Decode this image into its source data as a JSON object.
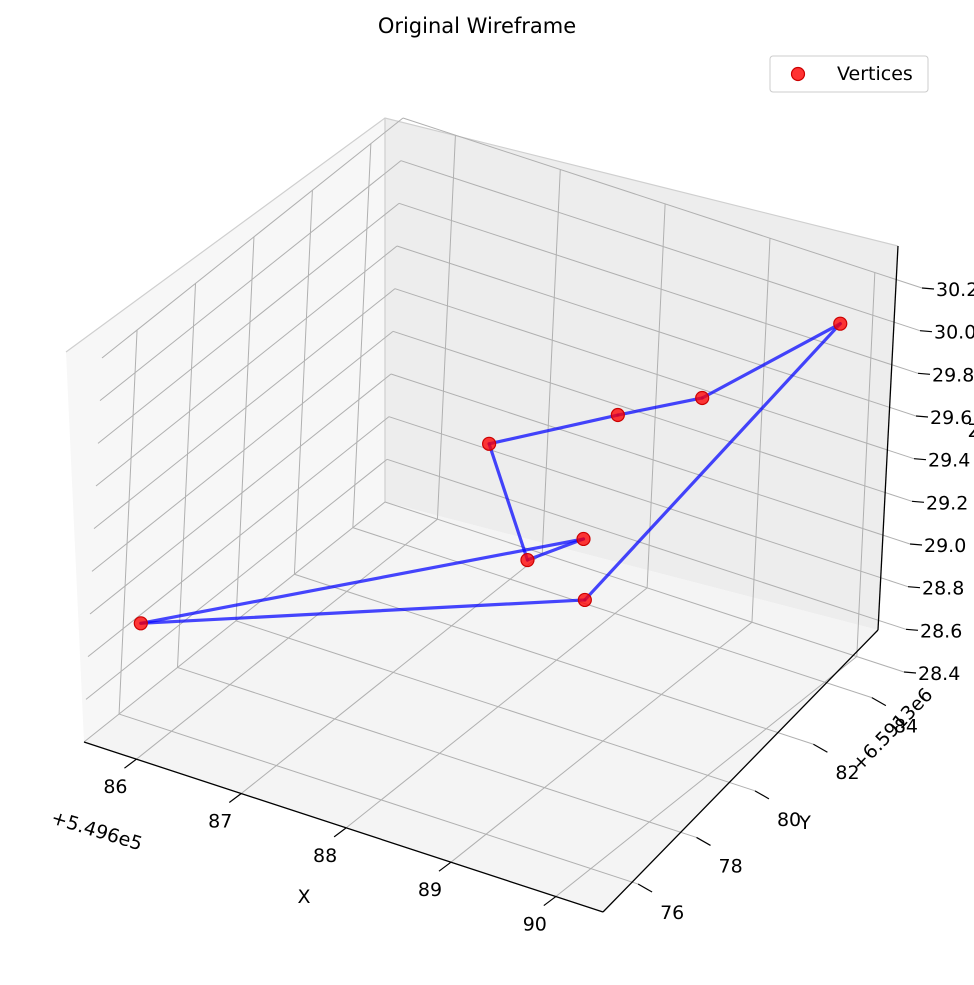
{
  "chart_data": {
    "type": "scatter",
    "projection": "3d",
    "title": "Original Wireframe",
    "xlabel": "X",
    "ylabel": "Y",
    "zlabel": "Z",
    "x_offset_label": "+5.496e5",
    "y_offset_label": "+6.5913e6",
    "x_ticks": [
      "86",
      "87",
      "88",
      "89",
      "90"
    ],
    "y_ticks": [
      "76",
      "78",
      "80",
      "82",
      "84"
    ],
    "z_ticks": [
      "28.4",
      "28.6",
      "28.8",
      "29.0",
      "29.2",
      "29.4",
      "29.6",
      "29.8",
      "30.0",
      "30.2"
    ],
    "legend": {
      "placement": "top-right",
      "entries": [
        "Vertices"
      ]
    },
    "grid": true,
    "colors": {
      "vertices": "#ff0000",
      "edges": "#0000ff",
      "pane": "#f2f2f2",
      "grid": "#b0b0b0"
    },
    "vertices_series": "Vertices",
    "vertices": [
      {
        "x": 85.4,
        "y": 77.0,
        "z": 28.7
      },
      {
        "x": 88.2,
        "y": 82.0,
        "z": 29.0
      },
      {
        "x": 88.0,
        "y": 80.8,
        "z": 29.0
      },
      {
        "x": 87.8,
        "y": 80.0,
        "z": 29.6
      },
      {
        "x": 88.6,
        "y": 81.5,
        "z": 29.7
      },
      {
        "x": 89.2,
        "y": 82.2,
        "z": 29.8
      },
      {
        "x": 90.2,
        "y": 83.2,
        "z": 30.2
      },
      {
        "x": 88.9,
        "y": 79.5,
        "z": 29.1
      }
    ],
    "edges": [
      [
        0,
        1
      ],
      [
        1,
        2
      ],
      [
        2,
        3
      ],
      [
        3,
        4
      ],
      [
        4,
        5
      ],
      [
        5,
        6
      ],
      [
        6,
        7
      ],
      [
        7,
        0
      ]
    ]
  }
}
